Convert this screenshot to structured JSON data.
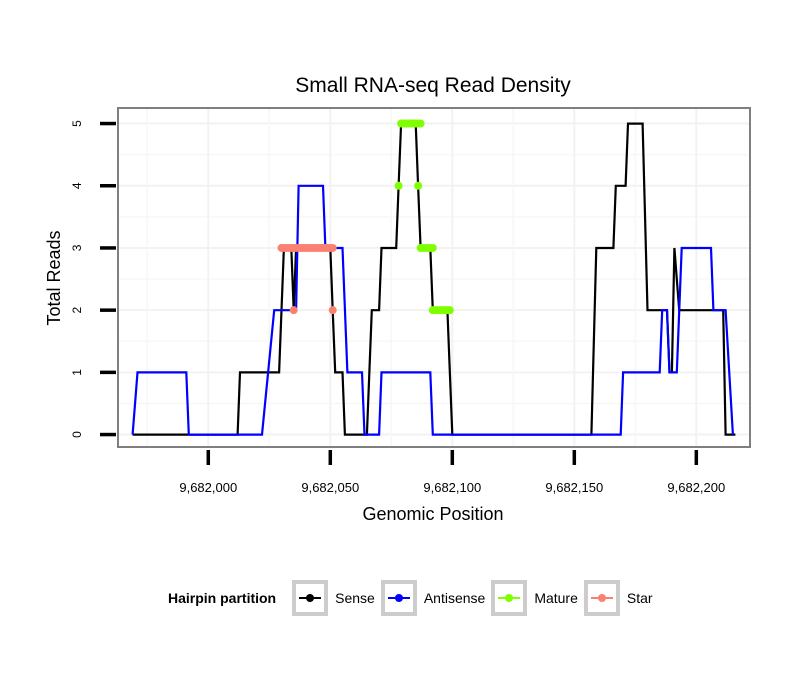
{
  "chart_data": {
    "type": "line",
    "title": "Small RNA-seq Read Density",
    "xlabel": "Genomic Position",
    "ylabel": "Total Reads",
    "xlim": [
      9681963,
      9682222
    ],
    "ylim": [
      -0.2,
      5.25
    ],
    "x_ticks": [
      9682000,
      9682050,
      9682100,
      9682150,
      9682200
    ],
    "x_tick_labels": [
      "9,682,000",
      "9,682,050",
      "9,682,100",
      "9,682,150",
      "9,682,200"
    ],
    "y_ticks": [
      0,
      1,
      2,
      3,
      4,
      5
    ],
    "y_tick_labels": [
      "0",
      "1",
      "2",
      "3",
      "4",
      "5"
    ],
    "grid": true,
    "legend": {
      "title": "Hairpin partition",
      "placement": "bottom",
      "entries": [
        "Sense",
        "Antisense",
        "Mature",
        "Star"
      ]
    },
    "series": [
      {
        "name": "Sense",
        "color": "#000000",
        "style": "line",
        "x": [
          9681969,
          9682012,
          9682013,
          9682029,
          9682031,
          9682034,
          9682035,
          9682036,
          9682050,
          9682051,
          9682052,
          9682055,
          9682056,
          9682065,
          9682067,
          9682070,
          9682071,
          9682077,
          9682078,
          9682079,
          9682085,
          9682086,
          9682087,
          9682091,
          9682092,
          9682098,
          9682100,
          9682157,
          9682159,
          9682166,
          9682167,
          9682171,
          9682172,
          9682178,
          9682180,
          9682188,
          9682189,
          9682190,
          9682191,
          9682193,
          9682211,
          9682212,
          9682216
        ],
        "y": [
          0,
          0,
          1,
          1,
          3,
          3,
          2,
          3,
          3,
          2,
          1,
          1,
          0,
          0,
          2,
          2,
          3,
          3,
          4,
          5,
          5,
          4,
          3,
          3,
          2,
          2,
          0,
          0,
          3,
          3,
          4,
          4,
          5,
          5,
          2,
          2,
          1,
          1,
          3,
          2,
          2,
          0,
          0
        ]
      },
      {
        "name": "Antisense",
        "color": "#0000ff",
        "style": "line",
        "x": [
          9681969,
          9681971,
          9681991,
          9681992,
          9682022,
          9682027,
          9682036,
          9682037,
          9682047,
          9682048,
          9682055,
          9682057,
          9682063,
          9682064,
          9682070,
          9682071,
          9682091,
          9682092,
          9682169,
          9682170,
          9682185,
          9682186,
          9682188,
          9682189,
          9682192,
          9682194,
          9682206,
          9682207,
          9682212,
          9682215
        ],
        "y": [
          0,
          1,
          1,
          0,
          0,
          2,
          2,
          4,
          4,
          3,
          3,
          1,
          1,
          0,
          0,
          1,
          1,
          0,
          0,
          1,
          1,
          2,
          2,
          1,
          1,
          3,
          3,
          2,
          2,
          0
        ]
      },
      {
        "name": "Mature",
        "color": "#7fff00",
        "style": "points",
        "x": [
          9682078,
          9682079,
          9682080,
          9682081,
          9682082,
          9682083,
          9682084,
          9682085,
          9682086,
          9682087,
          9682086,
          9682087,
          9682088,
          9682089,
          9682090,
          9682091,
          9682092,
          9682092,
          9682093,
          9682094,
          9682095,
          9682096,
          9682097,
          9682098,
          9682099
        ],
        "y": [
          4,
          5,
          5,
          5,
          5,
          5,
          5,
          5,
          5,
          5,
          4,
          3,
          3,
          3,
          3,
          3,
          3,
          2,
          2,
          2,
          2,
          2,
          2,
          2,
          2
        ]
      },
      {
        "name": "Star",
        "color": "#fa8072",
        "style": "points",
        "x": [
          9682030,
          9682031,
          9682032,
          9682033,
          9682034,
          9682035,
          9682036,
          9682037,
          9682038,
          9682039,
          9682040,
          9682041,
          9682042,
          9682043,
          9682044,
          9682045,
          9682046,
          9682047,
          9682048,
          9682049,
          9682050,
          9682051,
          9682035,
          9682051
        ],
        "y": [
          3,
          3,
          3,
          3,
          3,
          3,
          3,
          3,
          3,
          3,
          3,
          3,
          3,
          3,
          3,
          3,
          3,
          3,
          3,
          3,
          3,
          3,
          2,
          2
        ]
      }
    ]
  }
}
